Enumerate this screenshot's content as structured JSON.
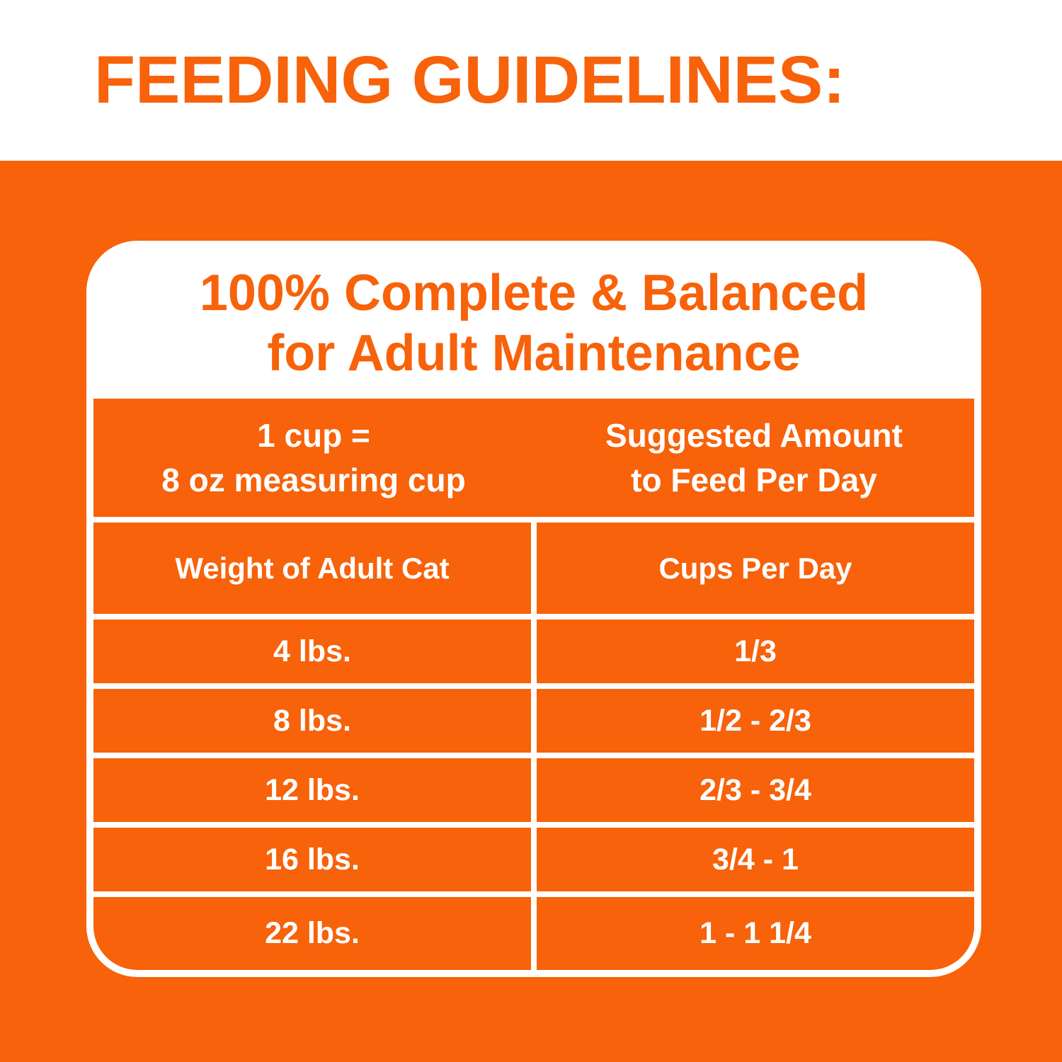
{
  "header": {
    "title": "FEEDING GUIDELINES:"
  },
  "card": {
    "heading_line1": "100% Complete & Balanced",
    "heading_line2": "for Adult Maintenance"
  },
  "table": {
    "intro": {
      "left_line1": "1 cup =",
      "left_line2": "8 oz measuring cup",
      "right_line1": "Suggested Amount",
      "right_line2": "to Feed Per Day"
    },
    "columns": [
      "Weight of Adult Cat",
      "Cups Per Day"
    ],
    "rows": [
      {
        "weight": "4 lbs.",
        "cups": "1/3"
      },
      {
        "weight": "8 lbs.",
        "cups": "1/2 - 2/3"
      },
      {
        "weight": "12 lbs.",
        "cups": "2/3 - 3/4"
      },
      {
        "weight": "16 lbs.",
        "cups": "3/4 - 1"
      },
      {
        "weight": "22 lbs.",
        "cups": "1 - 1 1/4"
      }
    ]
  },
  "colors": {
    "orange": "#F7620A",
    "white": "#FFFFFF"
  },
  "chart_data": {
    "type": "table",
    "title": "FEEDING GUIDELINES: 100% Complete & Balanced for Adult Maintenance",
    "note": "1 cup = 8 oz measuring cup; Suggested Amount to Feed Per Day",
    "columns": [
      "Weight of Adult Cat",
      "Cups Per Day"
    ],
    "rows": [
      [
        "4 lbs.",
        "1/3"
      ],
      [
        "8 lbs.",
        "1/2 - 2/3"
      ],
      [
        "12 lbs.",
        "2/3 - 3/4"
      ],
      [
        "16 lbs.",
        "3/4 - 1"
      ],
      [
        "22 lbs.",
        "1 - 1 1/4"
      ]
    ]
  }
}
